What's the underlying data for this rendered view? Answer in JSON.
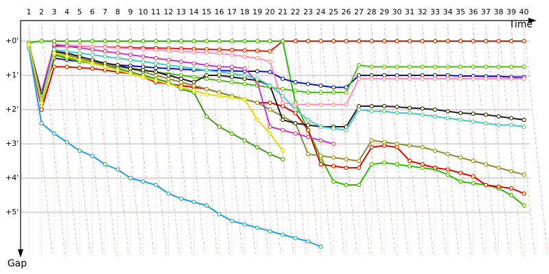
{
  "chart_data": {
    "type": "line",
    "x_label": "Time",
    "y_label": "Gap",
    "categories": [
      "1",
      "2",
      "3",
      "4",
      "5",
      "6",
      "7",
      "8",
      "9",
      "10",
      "11",
      "12",
      "13",
      "14",
      "15",
      "16",
      "17",
      "18",
      "19",
      "20",
      "21",
      "22",
      "23",
      "24",
      "25",
      "26",
      "27",
      "28",
      "29",
      "30",
      "31",
      "32",
      "33",
      "34",
      "35",
      "36",
      "37",
      "38",
      "39",
      "40"
    ],
    "ylim": [
      -0.6,
      6.2
    ],
    "yticks": [
      {
        "value": 0,
        "label": "+0'"
      },
      {
        "value": 1,
        "label": "+1'"
      },
      {
        "value": 2,
        "label": "+2'"
      },
      {
        "value": 3,
        "label": "+3'"
      },
      {
        "value": 4,
        "label": "+4'"
      },
      {
        "value": 5,
        "label": "+5'"
      }
    ],
    "y_inverted": true,
    "grid": true,
    "series": [
      {
        "color": "#e8120c",
        "values": [
          0.1,
          1.6,
          0.15,
          0.15,
          0.15,
          0.16,
          0.17,
          0.18,
          0.19,
          0.2,
          0.2,
          0.21,
          0.22,
          0.23,
          0.24,
          0.25,
          0.26,
          0.27,
          0.28,
          0.3,
          0,
          0,
          0,
          0,
          0,
          0,
          0,
          0,
          0,
          0,
          0,
          0,
          0,
          0,
          0,
          0,
          0,
          0,
          0,
          0
        ]
      },
      {
        "color": "#22c000",
        "values": [
          0.05,
          0,
          0,
          0,
          0,
          0,
          0,
          0,
          0,
          0,
          0,
          0,
          0,
          0,
          0,
          0,
          0,
          0,
          0,
          0,
          0,
          1.8,
          2.6,
          3.4,
          4.1,
          4.2,
          4.2,
          3.6,
          3.55,
          3.6,
          3.65,
          3.7,
          3.75,
          3.9,
          4.1,
          4.15,
          4.2,
          4.3,
          4.5,
          4.8
        ]
      },
      {
        "color": "#e00000",
        "values": [
          0.1,
          2.0,
          0.75,
          0.75,
          0.78,
          0.8,
          0.85,
          0.9,
          0.95,
          1.05,
          1.2,
          1.25,
          1.3,
          1.35,
          1.4,
          1.5,
          1.6,
          1.7,
          1.8,
          1.8,
          1.9,
          2.1,
          2.6,
          3.6,
          3.65,
          3.7,
          3.7,
          3.1,
          3.05,
          3.1,
          3.5,
          3.6,
          3.7,
          3.75,
          3.85,
          3.95,
          4.2,
          4.25,
          4.3,
          4.45
        ]
      },
      {
        "color": "#0010c8",
        "values": [
          0.1,
          1.7,
          0.5,
          0.55,
          0.6,
          0.62,
          0.65,
          0.7,
          0.72,
          0.75,
          0.78,
          0.8,
          0.82,
          0.84,
          0.85,
          0.86,
          0.87,
          0.88,
          0.88,
          0.9,
          1.1,
          1.2,
          1.25,
          1.3,
          1.35,
          1.35,
          1.0,
          1.0,
          1.0,
          1.0,
          1.0,
          1.0,
          1.0,
          1.0,
          1.02,
          1.02,
          1.03,
          1.03,
          1.05,
          1.05
        ]
      },
      {
        "color": "#44bb22",
        "values": [
          0.1,
          1.7,
          0.35,
          0.5,
          0.6,
          0.65,
          0.7,
          0.75,
          0.8,
          0.85,
          0.9,
          0.95,
          1.0,
          1.05,
          1.1,
          1.15,
          1.2,
          1.25,
          1.3,
          1.35,
          1.4,
          1.45,
          1.5,
          1.5,
          1.5,
          1.5,
          0.7,
          0.75,
          0.75,
          0.75,
          0.75,
          0.75,
          0.75,
          0.75,
          0.75,
          0.75,
          0.75,
          0.75,
          0.75,
          0.75
        ]
      },
      {
        "color": "#1a9ee8",
        "values": [
          0.2,
          2.4,
          2.7,
          2.95,
          3.2,
          3.35,
          3.6,
          3.75,
          4.0,
          4.1,
          4.2,
          4.45,
          4.6,
          4.7,
          4.8,
          5.05,
          5.25,
          5.35,
          5.45,
          5.55,
          5.65,
          5.75,
          5.85,
          6.0,
          null,
          null,
          null,
          null,
          null,
          null,
          null,
          null,
          null,
          null,
          null,
          null,
          null,
          null,
          null,
          null
        ]
      },
      {
        "color": "#3a9a1a",
        "values": [
          0.1,
          1.8,
          0.4,
          0.5,
          0.55,
          0.6,
          0.7,
          0.8,
          0.9,
          1.0,
          1.1,
          1.2,
          1.4,
          1.5,
          2.2,
          2.5,
          2.7,
          2.9,
          3.1,
          3.3,
          3.45,
          null,
          null,
          null,
          null,
          null,
          null,
          null,
          null,
          null,
          null,
          null,
          null,
          null,
          null,
          null,
          null,
          null,
          null,
          null
        ]
      },
      {
        "color": "#8a8a3a",
        "values": [
          0.1,
          1.9,
          0.3,
          0.4,
          0.5,
          0.6,
          0.7,
          0.75,
          0.8,
          0.9,
          1.0,
          1.1,
          1.2,
          1.3,
          1.4,
          1.5,
          1.6,
          1.7,
          1.8,
          2.0,
          2.2,
          2.4,
          3.3,
          3.35,
          3.4,
          3.45,
          3.5,
          2.9,
          2.95,
          3.0,
          3.05,
          3.1,
          3.2,
          3.3,
          3.4,
          3.5,
          3.6,
          3.7,
          3.8,
          3.9
        ]
      },
      {
        "color": "#ff88cc",
        "values": [
          0.1,
          1.6,
          0.1,
          0.12,
          0.14,
          0.16,
          0.18,
          0.2,
          0.22,
          0.24,
          0.26,
          0.28,
          0.3,
          0.32,
          0.34,
          0.36,
          0.4,
          0.45,
          0.5,
          0.6,
          1.8,
          1.85,
          1.85,
          1.85,
          1.85,
          1.85,
          1.1,
          1.1,
          1.1,
          1.1,
          1.1,
          1.1,
          1.1,
          1.1,
          1.1,
          1.1,
          1.1,
          1.1,
          1.1,
          1.1
        ]
      },
      {
        "color": "#cc33cc",
        "values": [
          0.1,
          1.5,
          0.1,
          0.15,
          0.2,
          0.25,
          0.3,
          0.35,
          0.4,
          0.45,
          0.5,
          0.55,
          0.6,
          0.65,
          0.7,
          0.75,
          0.75,
          0.8,
          1.2,
          2.5,
          2.6,
          2.7,
          2.8,
          2.9,
          3.0,
          null,
          null,
          null,
          null,
          null,
          null,
          null,
          null,
          null,
          null,
          null,
          null,
          null,
          null,
          null
        ]
      },
      {
        "color": "#1a1a2a",
        "values": [
          0.1,
          1.6,
          0.3,
          0.35,
          0.45,
          0.55,
          0.65,
          0.7,
          0.8,
          0.85,
          0.9,
          1.0,
          1.1,
          1.2,
          1.0,
          1.0,
          1.05,
          1.1,
          1.15,
          1.3,
          2.3,
          2.4,
          2.45,
          2.5,
          2.5,
          2.5,
          1.9,
          1.9,
          1.9,
          1.92,
          1.95,
          1.97,
          2.0,
          2.05,
          2.1,
          2.12,
          2.15,
          2.2,
          2.25,
          2.3
        ]
      },
      {
        "color": "#40c8d0",
        "values": [
          0.1,
          1.7,
          0.25,
          0.3,
          0.35,
          0.4,
          0.45,
          0.5,
          0.55,
          0.6,
          0.65,
          0.7,
          0.75,
          0.8,
          0.85,
          0.9,
          0.95,
          1.0,
          1.1,
          1.3,
          1.6,
          2.0,
          2.3,
          2.5,
          2.55,
          2.6,
          2.0,
          2.05,
          2.05,
          2.1,
          2.1,
          2.15,
          2.2,
          2.25,
          2.3,
          2.35,
          2.4,
          2.45,
          2.45,
          2.5
        ]
      },
      {
        "color": "#dddd00",
        "values": [
          0.1,
          1.8,
          0.35,
          0.45,
          0.55,
          0.65,
          0.75,
          0.85,
          0.95,
          1.05,
          1.15,
          1.25,
          1.35,
          1.45,
          1.55,
          1.6,
          1.65,
          1.7,
          2.3,
          2.7,
          3.2,
          null,
          null,
          null,
          null,
          null,
          null,
          null,
          null,
          null,
          null,
          null,
          null,
          null,
          null,
          null,
          null,
          null,
          null,
          null
        ]
      }
    ]
  }
}
